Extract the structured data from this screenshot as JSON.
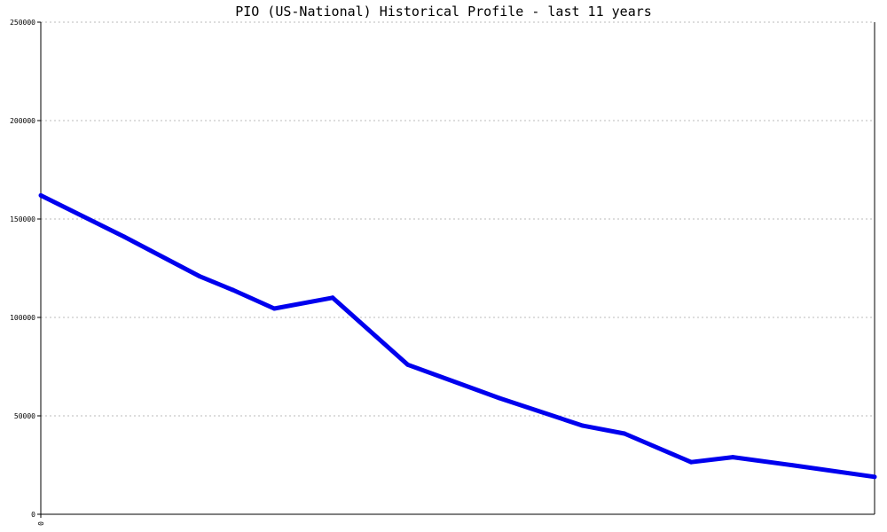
{
  "chart_data": {
    "type": "line",
    "title": "PIO (US-National) Historical Profile - last 11 years",
    "xlabel": "",
    "ylabel": "",
    "ylim": [
      0,
      250000
    ],
    "y_ticks": [
      "0",
      "50000",
      "100000",
      "150000",
      "200000",
      "250000"
    ],
    "x_ticks": [
      "0"
    ],
    "grid": true,
    "legend": "none",
    "color": "#0000ee",
    "series": [
      {
        "x": [
          0,
          1.0,
          1.9,
          2.3,
          2.8,
          3.5,
          4.4,
          5.5,
          6.5,
          7.0,
          7.8,
          8.3,
          9.0,
          10.0
        ],
        "values": [
          162000,
          141000,
          121000,
          114000,
          104500,
          110000,
          76000,
          59000,
          45000,
          41000,
          26500,
          29000,
          25000,
          19000
        ]
      }
    ]
  }
}
